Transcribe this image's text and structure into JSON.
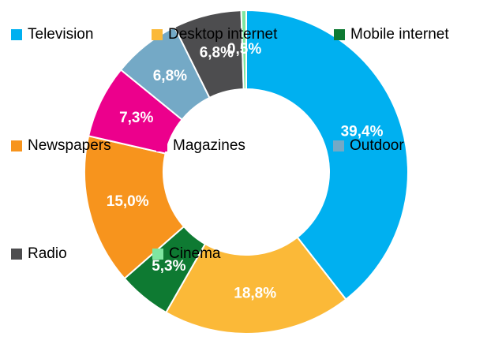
{
  "chart_data": {
    "type": "donut",
    "categories": [
      "Television",
      "Desktop internet",
      "Mobile internet",
      "Newspapers",
      "Magazines",
      "Outdoor",
      "Radio",
      "Cinema"
    ],
    "values": [
      39.4,
      18.8,
      5.3,
      15.0,
      7.3,
      6.8,
      6.8,
      0.5
    ],
    "value_labels": [
      "39,4%",
      "18,8%",
      "5,3%",
      "15,0%",
      "7,3%",
      "6,8%",
      "6,8%",
      "0,5%"
    ],
    "colors": [
      "#00b0f0",
      "#fbb938",
      "#0e7a32",
      "#f7941d",
      "#ec008c",
      "#74a9c6",
      "#4d4d4f",
      "#7fe6a0"
    ]
  }
}
